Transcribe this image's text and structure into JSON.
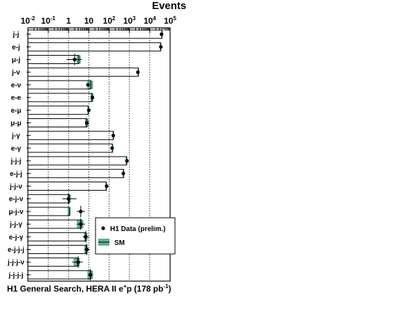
{
  "chart_data": {
    "type": "bar",
    "title": "Events",
    "footer": {
      "prefix": "H1 General Search, HERA II e",
      "beam_sup": "+",
      "mid": "p (178 pb",
      "lumi_sup": "-1",
      "suffix": ")"
    },
    "x_scale": "log",
    "xlim": [
      0.01,
      100000
    ],
    "x_ticks": [
      {
        "base": "10",
        "exp": "-2",
        "value": 0.01
      },
      {
        "base": "10",
        "exp": "-1",
        "value": 0.1
      },
      {
        "base": "1",
        "exp": "",
        "value": 1
      },
      {
        "base": "10",
        "exp": "",
        "value": 10
      },
      {
        "base": "10",
        "exp": "2",
        "value": 100
      },
      {
        "base": "10",
        "exp": "3",
        "value": 1000
      },
      {
        "base": "10",
        "exp": "4",
        "value": 10000
      },
      {
        "base": "10",
        "exp": "5",
        "value": 100000
      }
    ],
    "grid": "vertical dotted",
    "legend_position": "lower-right",
    "colors": {
      "sm_band": "#5fae8d",
      "bar_outline": "#000000",
      "data_marker": "#000000"
    },
    "categories": [
      "j-j",
      "e-j",
      "μ-j",
      "j-ν",
      "e-ν",
      "e-e",
      "e-μ",
      "μ-μ",
      "j-γ",
      "e-γ",
      "j-j-j",
      "e-j-j",
      "j-j-ν",
      "e-j-ν",
      "μ-j-ν",
      "j-j-γ",
      "e-j-γ",
      "e-j-j-j",
      "j-j-j-ν",
      "j-j-j-j"
    ],
    "series": [
      {
        "name": "H1 Data (prelim.)",
        "values": [
          38000,
          35000,
          2,
          2600,
          9,
          15,
          10,
          8,
          160,
          140,
          750,
          500,
          75,
          1,
          4,
          4,
          7,
          8,
          3,
          12
        ],
        "x_err_low": [
          null,
          null,
          1.2,
          null,
          null,
          null,
          null,
          null,
          null,
          null,
          null,
          null,
          null,
          0.5,
          1.5,
          1.5,
          2,
          2,
          1.5,
          3
        ],
        "x_err_high": [
          null,
          null,
          2.5,
          null,
          null,
          null,
          null,
          null,
          null,
          null,
          null,
          null,
          null,
          1.5,
          2.5,
          2.5,
          3,
          3,
          2,
          4
        ]
      },
      {
        "name": "SM",
        "values": [
          39000,
          34000,
          3.2,
          2700,
          12.5,
          14.5,
          9.5,
          8,
          160,
          145,
          720,
          510,
          72,
          1.1,
          1.1,
          4.2,
          7.2,
          7.3,
          2.8,
          12.5
        ],
        "band_low": [
          37000,
          32000,
          2.5,
          2550,
          8.5,
          12,
          8.5,
          6.5,
          150,
          135,
          650,
          470,
          66,
          0.9,
          0.9,
          2.6,
          5.8,
          6,
          1.8,
          8.5
        ],
        "band_high": [
          41000,
          36000,
          4,
          2850,
          16,
          17,
          10.5,
          9.5,
          170,
          155,
          790,
          550,
          78,
          1.3,
          1.3,
          5.4,
          8.6,
          8.8,
          3.6,
          16
        ]
      }
    ]
  }
}
